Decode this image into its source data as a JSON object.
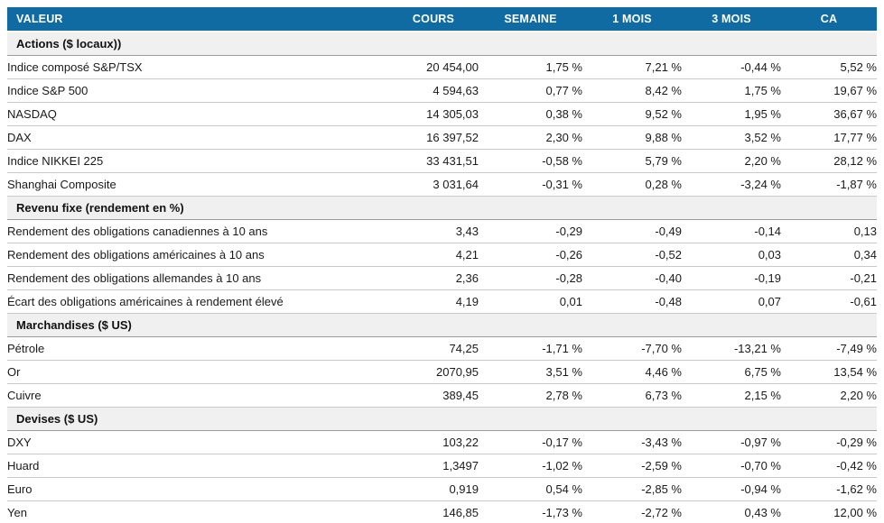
{
  "colors": {
    "header_bg": "#0f6ba1",
    "header_text": "#ffffff",
    "positive": "#14a555",
    "negative": "#e11e23",
    "section_bg": "#f0f0f0",
    "row_border": "#c9c9c9"
  },
  "table": {
    "columns": [
      "VALEUR",
      "COURS",
      "SEMAINE",
      "1 MOIS",
      "3 MOIS",
      "CA"
    ],
    "sections": [
      {
        "title": "Actions ($ locaux))",
        "rows": [
          {
            "label": "Indice composé S&P/TSX",
            "cours": "20 454,00",
            "changes": [
              {
                "text": "1,75 %",
                "tone": "positive"
              },
              {
                "text": "7,21 %",
                "tone": "positive"
              },
              {
                "text": "-0,44 %",
                "tone": "negative"
              },
              {
                "text": "5,52 %",
                "tone": "positive"
              }
            ]
          },
          {
            "label": "Indice S&P 500",
            "cours": "4 594,63",
            "changes": [
              {
                "text": "0,77 %",
                "tone": "positive"
              },
              {
                "text": "8,42 %",
                "tone": "positive"
              },
              {
                "text": "1,75 %",
                "tone": "positive"
              },
              {
                "text": "19,67 %",
                "tone": "positive"
              }
            ]
          },
          {
            "label": "NASDAQ",
            "cours": "14 305,03",
            "changes": [
              {
                "text": "0,38 %",
                "tone": "positive"
              },
              {
                "text": "9,52 %",
                "tone": "positive"
              },
              {
                "text": "1,95 %",
                "tone": "positive"
              },
              {
                "text": "36,67 %",
                "tone": "positive"
              }
            ]
          },
          {
            "label": "DAX",
            "cours": "16 397,52",
            "changes": [
              {
                "text": "2,30 %",
                "tone": "positive"
              },
              {
                "text": "9,88 %",
                "tone": "positive"
              },
              {
                "text": "3,52 %",
                "tone": "positive"
              },
              {
                "text": "17,77 %",
                "tone": "positive"
              }
            ]
          },
          {
            "label": "Indice NIKKEI 225",
            "cours": "33 431,51",
            "changes": [
              {
                "text": "-0,58 %",
                "tone": "negative"
              },
              {
                "text": "5,79 %",
                "tone": "positive"
              },
              {
                "text": "2,20 %",
                "tone": "positive"
              },
              {
                "text": "28,12 %",
                "tone": "positive"
              }
            ]
          },
          {
            "label": "Shanghai Composite",
            "cours": "3 031,64",
            "changes": [
              {
                "text": "-0,31 %",
                "tone": "negative"
              },
              {
                "text": "0,28 %",
                "tone": "positive"
              },
              {
                "text": "-3,24 %",
                "tone": "negative"
              },
              {
                "text": "-1,87 %",
                "tone": "negative"
              }
            ]
          }
        ]
      },
      {
        "title": "Revenu fixe (rendement en %)",
        "rows": [
          {
            "label": "Rendement des obligations canadiennes à 10 ans",
            "cours": "3,43",
            "changes": [
              {
                "text": "-0,29",
                "tone": "positive"
              },
              {
                "text": "-0,49",
                "tone": "positive"
              },
              {
                "text": "-0,14",
                "tone": "positive"
              },
              {
                "text": "0,13",
                "tone": "negative"
              }
            ]
          },
          {
            "label": "Rendement des obligations américaines à 10 ans",
            "cours": "4,21",
            "changes": [
              {
                "text": "-0,26",
                "tone": "positive"
              },
              {
                "text": "-0,52",
                "tone": "positive"
              },
              {
                "text": "0,03",
                "tone": "negative"
              },
              {
                "text": "0,34",
                "tone": "negative"
              }
            ]
          },
          {
            "label": "Rendement des obligations allemandes à 10 ans",
            "cours": "2,36",
            "changes": [
              {
                "text": "-0,28",
                "tone": "positive"
              },
              {
                "text": "-0,40",
                "tone": "positive"
              },
              {
                "text": "-0,19",
                "tone": "positive"
              },
              {
                "text": "-0,21",
                "tone": "positive"
              }
            ]
          },
          {
            "label": "Écart des obligations américaines à rendement élevé",
            "cours": "4,19",
            "changes": [
              {
                "text": "0,01",
                "tone": "negative"
              },
              {
                "text": "-0,48",
                "tone": "positive"
              },
              {
                "text": "0,07",
                "tone": "negative"
              },
              {
                "text": "-0,61",
                "tone": "positive"
              }
            ]
          }
        ]
      },
      {
        "title": "Marchandises ($ US)",
        "rows": [
          {
            "label": "Pétrole",
            "cours": "74,25",
            "changes": [
              {
                "text": "-1,71 %",
                "tone": "negative"
              },
              {
                "text": "-7,70 %",
                "tone": "negative"
              },
              {
                "text": "-13,21 %",
                "tone": "negative"
              },
              {
                "text": "-7,49 %",
                "tone": "negative"
              }
            ]
          },
          {
            "label": "Or",
            "cours": "2070,95",
            "changes": [
              {
                "text": "3,51 %",
                "tone": "positive"
              },
              {
                "text": "4,46 %",
                "tone": "positive"
              },
              {
                "text": "6,75 %",
                "tone": "positive"
              },
              {
                "text": "13,54 %",
                "tone": "positive"
              }
            ]
          },
          {
            "label": "Cuivre",
            "cours": "389,45",
            "changes": [
              {
                "text": "2,78 %",
                "tone": "positive"
              },
              {
                "text": "6,73 %",
                "tone": "positive"
              },
              {
                "text": "2,15 %",
                "tone": "positive"
              },
              {
                "text": "2,20 %",
                "tone": "positive"
              }
            ]
          }
        ]
      },
      {
        "title": "Devises ($ US)",
        "rows": [
          {
            "label": "DXY",
            "cours": "103,22",
            "changes": [
              {
                "text": "-0,17 %",
                "tone": "negative"
              },
              {
                "text": "-3,43 %",
                "tone": "negative"
              },
              {
                "text": "-0,97 %",
                "tone": "negative"
              },
              {
                "text": "-0,29 %",
                "tone": "negative"
              }
            ]
          },
          {
            "label": "Huard",
            "cours": "1,3497",
            "changes": [
              {
                "text": "-1,02 %",
                "tone": "negative"
              },
              {
                "text": "-2,59 %",
                "tone": "negative"
              },
              {
                "text": "-0,70 %",
                "tone": "negative"
              },
              {
                "text": "-0,42 %",
                "tone": "negative"
              }
            ]
          },
          {
            "label": "Euro",
            "cours": "0,919",
            "changes": [
              {
                "text": "0,54 %",
                "tone": "positive"
              },
              {
                "text": "-2,85 %",
                "tone": "negative"
              },
              {
                "text": "-0,94 %",
                "tone": "negative"
              },
              {
                "text": "-1,62 %",
                "tone": "negative"
              }
            ]
          },
          {
            "label": "Yen",
            "cours": "146,85",
            "changes": [
              {
                "text": "-1,73 %",
                "tone": "negative"
              },
              {
                "text": "-2,72 %",
                "tone": "negative"
              },
              {
                "text": "0,43 %",
                "tone": "positive"
              },
              {
                "text": "12,00 %",
                "tone": "positive"
              }
            ]
          }
        ]
      }
    ]
  }
}
